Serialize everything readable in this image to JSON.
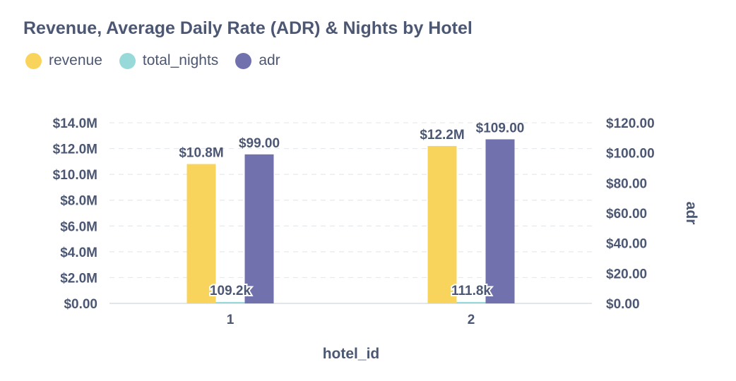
{
  "chart_data": {
    "type": "bar",
    "title": "Revenue, Average Daily Rate (ADR) & Nights by Hotel",
    "xlabel": "hotel_id",
    "ylabel_right": "adr",
    "categories": [
      "1",
      "2"
    ],
    "left_axis": {
      "ylim": [
        0,
        14000000
      ],
      "ticks": [
        "$0.00",
        "$2.0M",
        "$4.0M",
        "$6.0M",
        "$8.0M",
        "$10.0M",
        "$12.0M",
        "$14.0M"
      ]
    },
    "right_axis": {
      "ylim": [
        0,
        120
      ],
      "ticks": [
        "$0.00",
        "$20.00",
        "$40.00",
        "$60.00",
        "$80.00",
        "$100.00",
        "$120.00"
      ]
    },
    "series": [
      {
        "name": "revenue",
        "axis": "left",
        "color": "#f9d45c",
        "values": [
          10800000,
          12200000
        ],
        "labels": [
          "$10.8M",
          "$12.2M"
        ]
      },
      {
        "name": "total_nights",
        "axis": "left",
        "color": "#98d9d9",
        "values": [
          109200,
          111800
        ],
        "labels": [
          "109.2k",
          "111.8k"
        ]
      },
      {
        "name": "adr",
        "axis": "right",
        "color": "#7172ad",
        "values": [
          99,
          109
        ],
        "labels": [
          "$99.00",
          "$109.00"
        ]
      }
    ],
    "grid": true,
    "legend_position": "top-left"
  }
}
